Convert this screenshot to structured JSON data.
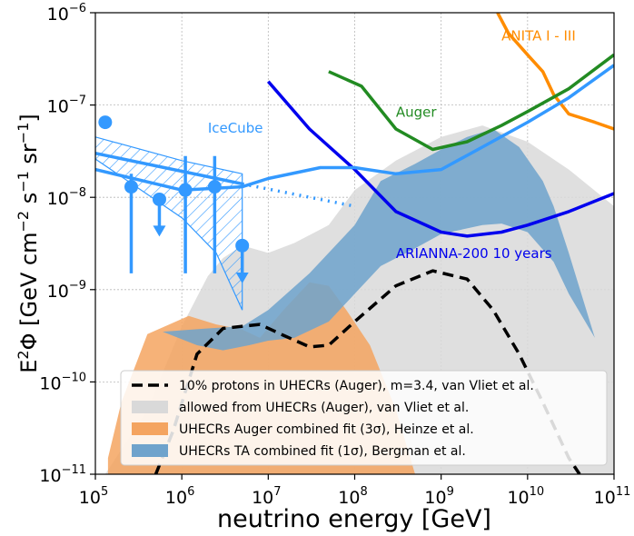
{
  "chart_data": {
    "type": "line",
    "xlabel": "neutrino energy [GeV]",
    "ylabel_parts": [
      "E",
      "2",
      "Φ [GeV cm",
      "−2",
      " s",
      "−1",
      " sr",
      "−1",
      "]"
    ],
    "x_log": true,
    "y_log": true,
    "xlim": [
      100000,
      100000000000
    ],
    "ylim": [
      1e-11,
      1e-06
    ],
    "grid": true,
    "x_ticks": [
      {
        "base": "10",
        "exp": "5",
        "value": 100000.0
      },
      {
        "base": "10",
        "exp": "6",
        "value": 1000000.0
      },
      {
        "base": "10",
        "exp": "7",
        "value": 10000000.0
      },
      {
        "base": "10",
        "exp": "8",
        "value": 100000000.0
      },
      {
        "base": "10",
        "exp": "9",
        "value": 1000000000.0
      },
      {
        "base": "10",
        "exp": "10",
        "value": 10000000000.0
      },
      {
        "base": "10",
        "exp": "11",
        "value": 100000000000.0
      }
    ],
    "y_ticks": [
      {
        "base": "10",
        "exp": "−11",
        "value": 1e-11
      },
      {
        "base": "10",
        "exp": "−10",
        "value": 1e-10
      },
      {
        "base": "10",
        "exp": "−9",
        "value": 1e-09
      },
      {
        "base": "10",
        "exp": "−8",
        "value": 1e-08
      },
      {
        "base": "10",
        "exp": "−7",
        "value": 1e-07
      },
      {
        "base": "10",
        "exp": "−6",
        "value": 1e-06
      }
    ],
    "annotations": [
      {
        "text": "ANITA I - III",
        "color": "#ff8c00",
        "x": 5000000000.0,
        "y": 5e-07
      },
      {
        "text": "Auger",
        "color": "#228b22",
        "x": 300000000.0,
        "y": 7.5e-08
      },
      {
        "text": "IceCube",
        "color": "#3399ff",
        "x": 2000000.0,
        "y": 5e-08
      },
      {
        "text": "ARIANNA-200 10 years",
        "color": "#0000ee",
        "x": 300000000.0,
        "y": 2.2e-09
      }
    ],
    "bands": [
      {
        "name": "allowed from UHECRs (Auger), van Vliet et al.",
        "color": "#d9d9d9",
        "upper": [
          [
            130000.0,
            1e-11
          ],
          [
            400000.0,
            5e-11
          ],
          [
            1000000.0,
            4e-10
          ],
          [
            2000000.0,
            1.4e-09
          ],
          [
            3000000.0,
            2.2e-09
          ],
          [
            5000000.0,
            3e-09
          ],
          [
            10000000.0,
            2.5e-09
          ],
          [
            20000000.0,
            3.2e-09
          ],
          [
            50000000.0,
            5e-09
          ],
          [
            100000000.0,
            1.2e-08
          ],
          [
            300000000.0,
            2.5e-08
          ],
          [
            1000000000.0,
            4.5e-08
          ],
          [
            3000000000.0,
            6e-08
          ],
          [
            10000000000.0,
            4e-08
          ],
          [
            30000000000.0,
            2e-08
          ],
          [
            100000000000.0,
            8e-09
          ]
        ],
        "lower": [
          [
            130000.0,
            1e-11
          ],
          [
            100000000000.0,
            1e-11
          ]
        ]
      },
      {
        "name": "UHECRs Auger combined fit (3σ), Heinze et al.",
        "color": "#f4a460",
        "upper": [
          [
            140000.0,
            1.5e-11
          ],
          [
            200000.0,
            6e-11
          ],
          [
            400000.0,
            3.3e-10
          ],
          [
            1200000.0,
            5.2e-10
          ],
          [
            2500000.0,
            4.2e-10
          ],
          [
            5000000.0,
            3.7e-10
          ],
          [
            8000000.0,
            3e-10
          ],
          [
            15000000.0,
            6e-10
          ],
          [
            30000000.0,
            1.2e-09
          ],
          [
            50000000.0,
            1.1e-09
          ],
          [
            80000000.0,
            6e-10
          ],
          [
            150000000.0,
            2.5e-10
          ],
          [
            300000000.0,
            5e-11
          ],
          [
            500000000.0,
            1e-11
          ]
        ],
        "lower": [
          [
            140000.0,
            1e-11
          ],
          [
            500000000.0,
            1e-11
          ]
        ]
      },
      {
        "name": "UHECRs TA combined fit (1σ), Bergman et al.",
        "color": "#6fa3cc",
        "upper": [
          [
            600000.0,
            3.5e-10
          ],
          [
            2000000.0,
            3.8e-10
          ],
          [
            5000000.0,
            4e-10
          ],
          [
            10000000.0,
            6e-10
          ],
          [
            30000000.0,
            1.5e-09
          ],
          [
            100000000.0,
            5e-09
          ],
          [
            200000000.0,
            1.5e-08
          ],
          [
            500000000.0,
            2.3e-08
          ],
          [
            1000000000.0,
            3.3e-08
          ],
          [
            2000000000.0,
            4.5e-08
          ],
          [
            4000000000.0,
            5.5e-08
          ],
          [
            8000000000.0,
            3.5e-08
          ],
          [
            15000000000.0,
            1.5e-08
          ],
          [
            20000000000.0,
            8e-09
          ],
          [
            30000000000.0,
            2.5e-09
          ],
          [
            60000000000.0,
            3e-10
          ]
        ],
        "lower": [
          [
            60000000000.0,
            3e-10
          ],
          [
            30000000000.0,
            9e-10
          ],
          [
            20000000000.0,
            2e-09
          ],
          [
            10000000000.0,
            4.2e-09
          ],
          [
            5000000000.0,
            5.2e-09
          ],
          [
            3000000000.0,
            5e-09
          ],
          [
            1000000000.0,
            4e-09
          ],
          [
            500000000.0,
            2.8e-09
          ],
          [
            200000000.0,
            1.8e-09
          ],
          [
            100000000.0,
            9e-10
          ],
          [
            50000000.0,
            4.5e-10
          ],
          [
            20000000.0,
            3e-10
          ],
          [
            10000000.0,
            2.8e-10
          ],
          [
            6000000.0,
            2.5e-10
          ],
          [
            3000000.0,
            2.2e-10
          ],
          [
            1500000.0,
            2.5e-10
          ],
          [
            600000.0,
            3.5e-10
          ]
        ]
      }
    ],
    "series": [
      {
        "name": "ANITA I - III",
        "color": "#ff8c00",
        "width": 3.5,
        "dash": "",
        "points": [
          [
            4500000000.0,
            1e-06
          ],
          [
            6000000000.0,
            6e-07
          ],
          [
            10000000000.0,
            3.5e-07
          ],
          [
            15000000000.0,
            2.3e-07
          ],
          [
            20000000000.0,
            1.3e-07
          ],
          [
            30000000000.0,
            8e-08
          ],
          [
            60000000000.0,
            6.5e-08
          ],
          [
            100000000000.0,
            5.5e-08
          ]
        ]
      },
      {
        "name": "Auger",
        "color": "#228b22",
        "width": 3.5,
        "dash": "",
        "points": [
          [
            50000000.0,
            2.3e-07
          ],
          [
            120000000.0,
            1.6e-07
          ],
          [
            300000000.0,
            5.5e-08
          ],
          [
            800000000.0,
            3.3e-08
          ],
          [
            2000000000.0,
            4e-08
          ],
          [
            5000000000.0,
            6e-08
          ],
          [
            10000000000.0,
            8.5e-08
          ],
          [
            30000000000.0,
            1.5e-07
          ],
          [
            100000000000.0,
            3.5e-07
          ]
        ]
      },
      {
        "name": "ARIANNA-200 10 years",
        "color": "#0000ee",
        "width": 3.5,
        "dash": "",
        "points": [
          [
            10000000.0,
            1.8e-07
          ],
          [
            30000000.0,
            5.5e-08
          ],
          [
            100000000.0,
            2e-08
          ],
          [
            300000000.0,
            7e-09
          ],
          [
            1000000000.0,
            4.2e-09
          ],
          [
            2000000000.0,
            3.8e-09
          ],
          [
            5000000000.0,
            4.2e-09
          ],
          [
            10000000000.0,
            5e-09
          ],
          [
            30000000000.0,
            7e-09
          ],
          [
            100000000000.0,
            1.1e-08
          ]
        ]
      },
      {
        "name": "IceCube sensitivity",
        "color": "#3399ff",
        "width": 3.5,
        "dash": "",
        "points": [
          [
            100000.0,
            2e-08
          ],
          [
            1000000.0,
            1.2e-08
          ],
          [
            5000000.0,
            1.3e-08
          ],
          [
            10000000.0,
            1.6e-08
          ],
          [
            40000000.0,
            2.1e-08
          ],
          [
            100000000.0,
            2.1e-08
          ],
          [
            300000000.0,
            1.8e-08
          ],
          [
            1000000000.0,
            2e-08
          ],
          [
            3000000000.0,
            3.5e-08
          ],
          [
            10000000000.0,
            6.5e-08
          ],
          [
            30000000000.0,
            1.2e-07
          ],
          [
            100000000000.0,
            2.7e-07
          ]
        ]
      },
      {
        "name": "IceCube fit",
        "color": "#3399ff",
        "width": 3.5,
        "dash": "",
        "points": [
          [
            100000.0,
            3e-08
          ],
          [
            5000000.0,
            1.4e-08
          ]
        ]
      },
      {
        "name": "IceCube fit extrapolation",
        "color": "#3399ff",
        "width": 3.5,
        "dash": "2,6",
        "points": [
          [
            5000000.0,
            1.4e-08
          ],
          [
            100000000.0,
            8e-09
          ]
        ]
      },
      {
        "name": "10% protons in UHECRs (Auger), m=3.4, van Vliet et al.",
        "color": "#000000",
        "width": 3.5,
        "dash": "12,7",
        "points": [
          [
            500000.0,
            1e-11
          ],
          [
            800000.0,
            3e-11
          ],
          [
            1500000.0,
            2e-10
          ],
          [
            3000000.0,
            3.8e-10
          ],
          [
            8000000.0,
            4.2e-10
          ],
          [
            15000000.0,
            3.2e-10
          ],
          [
            30000000.0,
            2.4e-10
          ],
          [
            50000000.0,
            2.5e-10
          ],
          [
            100000000.0,
            4.5e-10
          ],
          [
            300000000.0,
            1.1e-09
          ],
          [
            800000000.0,
            1.6e-09
          ],
          [
            2000000000.0,
            1.3e-09
          ],
          [
            4000000000.0,
            6e-10
          ],
          [
            8000000000.0,
            2e-10
          ],
          [
            15000000000.0,
            6e-11
          ],
          [
            30000000000.0,
            1.5e-11
          ],
          [
            40000000000.0,
            1e-11
          ]
        ]
      }
    ],
    "icecube_points": [
      {
        "x": 130000.0,
        "y": 6.5e-08,
        "yerr_lo": 5.5e-08,
        "yerr_hi": 7.5e-08,
        "upper_limit": false
      },
      {
        "x": 260000.0,
        "y": 1.3e-08,
        "yerr_lo": 1.5e-09,
        "yerr_hi": 1.8e-08,
        "upper_limit": false
      },
      {
        "x": 550000.0,
        "y": 9.5e-09,
        "yerr_lo": 4.5e-09,
        "yerr_hi": 9.5e-09,
        "upper_limit": true
      },
      {
        "x": 1100000.0,
        "y": 1.2e-08,
        "yerr_lo": 1.5e-09,
        "yerr_hi": 2.8e-08,
        "upper_limit": false
      },
      {
        "x": 2400000.0,
        "y": 1.3e-08,
        "yerr_lo": 1.5e-09,
        "yerr_hi": 2.8e-08,
        "upper_limit": false
      },
      {
        "x": 5000000.0,
        "y": 3e-09,
        "yerr_lo": 1.4e-09,
        "yerr_hi": 3e-09,
        "upper_limit": true
      }
    ],
    "icecube_band": {
      "color": "#3399ff",
      "polygon": [
        [
          100000.0,
          4.5e-08
        ],
        [
          1000000.0,
          2.5e-08
        ],
        [
          5000000.0,
          1.8e-08
        ],
        [
          5000000.0,
          6e-10
        ],
        [
          2500000.0,
          2.5e-09
        ],
        [
          1000000.0,
          6e-09
        ],
        [
          100000.0,
          2.6e-08
        ]
      ]
    },
    "legend": {
      "position": "lower right",
      "entries": [
        {
          "label": "10% protons in UHECRs (Auger), m=3.4, van Vliet et al.",
          "kind": "dashed-line",
          "color": "#000000"
        },
        {
          "label": "allowed from UHECRs (Auger), van Vliet et al.",
          "kind": "patch",
          "color": "#d9d9d9"
        },
        {
          "label": "UHECRs Auger combined fit (3σ), Heinze et al.",
          "kind": "patch",
          "color": "#f4a460"
        },
        {
          "label": "UHECRs TA combined fit (1σ), Bergman et al.",
          "kind": "patch",
          "color": "#6fa3cc"
        }
      ]
    }
  }
}
